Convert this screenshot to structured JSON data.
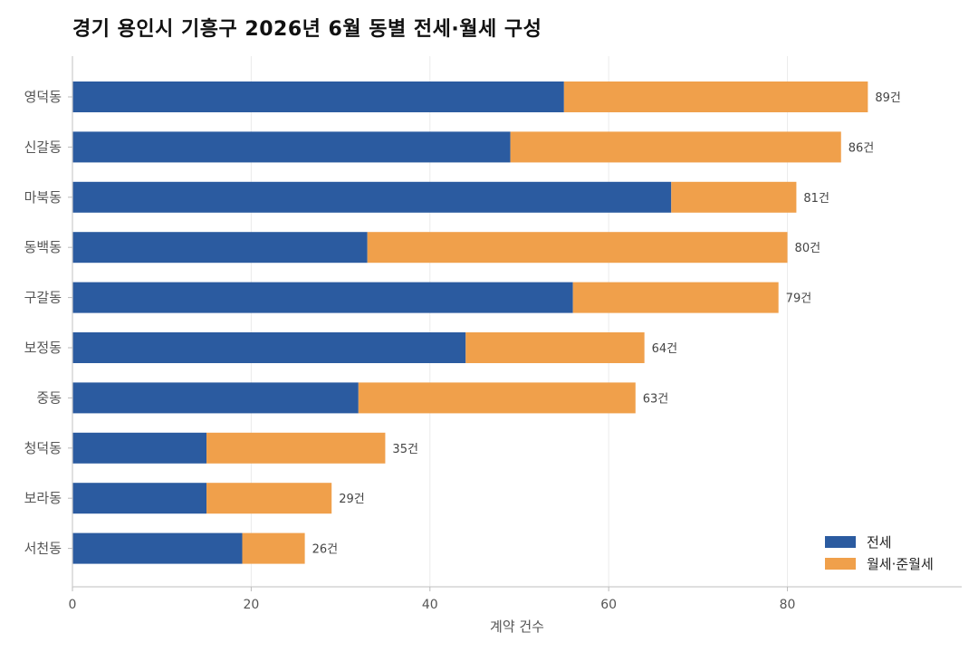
{
  "chart_data": {
    "type": "bar",
    "orientation": "horizontal",
    "stacked": true,
    "title": "경기 용인시 기흥구 2026년 6월 동별 전세·월세 구성",
    "xlabel": "계약 건수",
    "ylabel": "",
    "xlim": [
      0,
      99.5
    ],
    "xticks": [
      0,
      20,
      40,
      60,
      80
    ],
    "grid": "vertical",
    "legend_position": "bottom-right",
    "total_suffix": "건",
    "categories": [
      "영덕동",
      "신갈동",
      "마북동",
      "동백동",
      "구갈동",
      "보정동",
      "중동",
      "청덕동",
      "보라동",
      "서천동"
    ],
    "series": [
      {
        "name": "전세",
        "color": "#2b5ba0",
        "values": [
          55,
          49,
          67,
          33,
          56,
          44,
          32,
          15,
          15,
          19
        ]
      },
      {
        "name": "월세·준월세",
        "color": "#f0a04b",
        "values": [
          34,
          37,
          14,
          47,
          23,
          20,
          31,
          20,
          14,
          7
        ]
      }
    ],
    "totals": [
      89,
      86,
      81,
      80,
      79,
      64,
      63,
      35,
      29,
      26
    ]
  }
}
